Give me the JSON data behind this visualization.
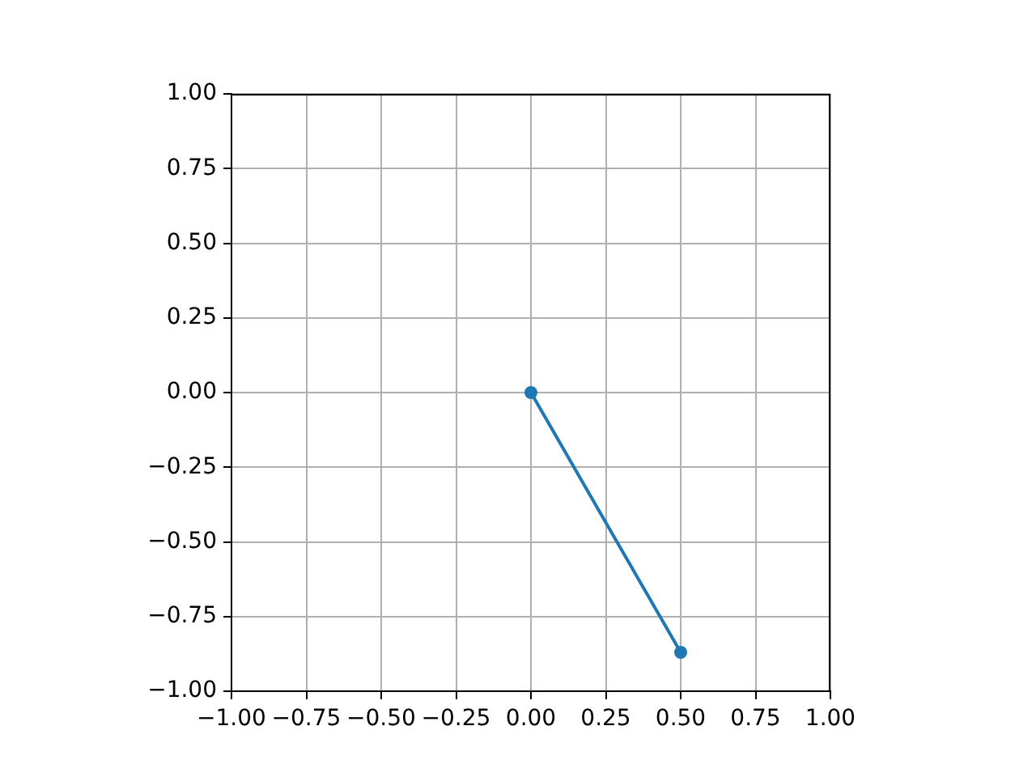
{
  "chart_data": {
    "type": "line",
    "x": [
      0,
      0.5
    ],
    "values": [
      0,
      -0.87
    ],
    "color": "#1f77b4",
    "xlim": [
      -1,
      1
    ],
    "ylim": [
      -1,
      1
    ],
    "xticks": [
      {
        "value": -1,
        "label": "−1.00"
      },
      {
        "value": -0.75,
        "label": "−0.75"
      },
      {
        "value": -0.5,
        "label": "−0.50"
      },
      {
        "value": -0.25,
        "label": "−0.25"
      },
      {
        "value": 0,
        "label": "0.00"
      },
      {
        "value": 0.25,
        "label": "0.25"
      },
      {
        "value": 0.5,
        "label": "0.50"
      },
      {
        "value": 0.75,
        "label": "0.75"
      },
      {
        "value": 1,
        "label": "1.00"
      }
    ],
    "yticks": [
      {
        "value": -1,
        "label": "−1.00"
      },
      {
        "value": -0.75,
        "label": "−0.75"
      },
      {
        "value": -0.5,
        "label": "−0.50"
      },
      {
        "value": -0.25,
        "label": "−0.25"
      },
      {
        "value": 0,
        "label": "0.00"
      },
      {
        "value": 0.25,
        "label": "0.25"
      },
      {
        "value": 0.5,
        "label": "0.50"
      },
      {
        "value": 0.75,
        "label": "0.75"
      },
      {
        "value": 1,
        "label": "1.00"
      }
    ],
    "grid": true,
    "legend": false,
    "marker": "circle",
    "line_style": "solid"
  }
}
